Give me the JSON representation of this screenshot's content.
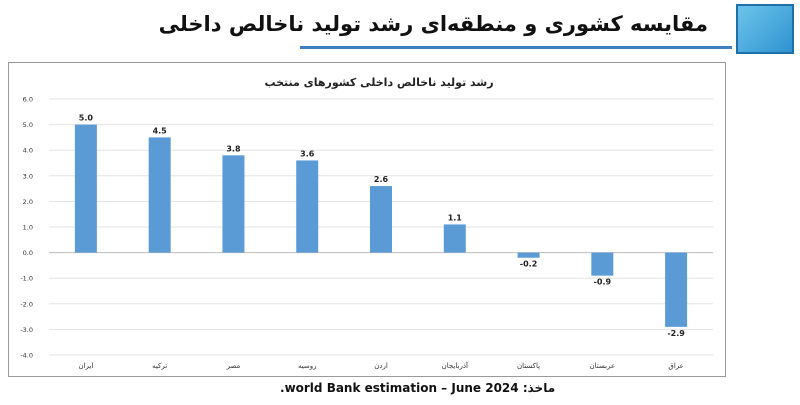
{
  "slide": {
    "title": "مقایسه کشوری و منطقه‌ای رشد تولید ناخالص داخلی",
    "source": "ماخذ: world Bank estimation – June 2024."
  },
  "colors": {
    "bar": "#5b9bd5",
    "accent": "#3f7ebf"
  },
  "chart_data": {
    "type": "bar",
    "title": "رشد تولید ناخالص داخلی کشورهای منتخب",
    "xlabel": "",
    "ylabel": "",
    "categories": [
      "ایران",
      "ترکیه",
      "مصر",
      "روسیه",
      "اردن",
      "آذربایجان",
      "پاکستان",
      "عربستان",
      "عراق"
    ],
    "values": [
      5.0,
      4.5,
      3.8,
      3.6,
      2.6,
      1.1,
      -0.2,
      -0.9,
      -2.9
    ],
    "value_labels": [
      "5.0",
      "4.5",
      "3.8",
      "3.6",
      "2.6",
      "1.1",
      "-0.2",
      "-0.9",
      "-2.9"
    ],
    "ylim": [
      -4.0,
      6.0
    ],
    "yticks": [
      "6.0",
      "5.0",
      "4.0",
      "3.0",
      "2.0",
      "1.0",
      "0.0",
      "-1.0",
      "-2.0",
      "-3.0",
      "-4.0"
    ],
    "grid": true,
    "legend": "none"
  }
}
